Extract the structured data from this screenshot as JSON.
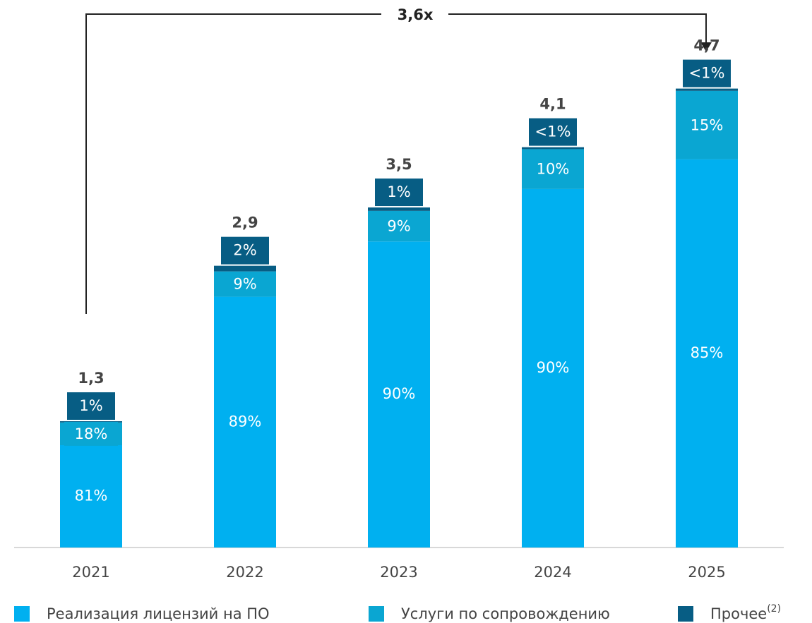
{
  "chart_data": {
    "type": "stacked_bar",
    "annotation": "3,6x",
    "categories": [
      "2021",
      "2022",
      "2023",
      "2024",
      "2025"
    ],
    "totals": {
      "values": [
        1.3,
        2.9,
        3.5,
        4.1,
        4.7
      ],
      "value_labels": [
        "1,3",
        "2,9",
        "3,5",
        "4,1",
        "4,7"
      ]
    },
    "series": [
      {
        "name": "Реализация лицензий на ПО",
        "color": "#00b0f0",
        "values": [
          81,
          89,
          90,
          90,
          85
        ],
        "value_labels": [
          "81%",
          "89%",
          "90%",
          "90%",
          "85%"
        ]
      },
      {
        "name": "Услуги по сопровождению",
        "color": "#0aa6d2",
        "values": [
          18,
          9,
          9,
          10,
          15
        ],
        "value_labels": [
          "18%",
          "9%",
          "9%",
          "10%",
          "15%"
        ]
      },
      {
        "name": "Прочее",
        "legend_note": "(2)",
        "color": "#075d84",
        "values": [
          1,
          2,
          1,
          0.5,
          0.5
        ],
        "value_labels": [
          "1%",
          "2%",
          "1%",
          "<1%",
          "<1%"
        ]
      }
    ]
  }
}
